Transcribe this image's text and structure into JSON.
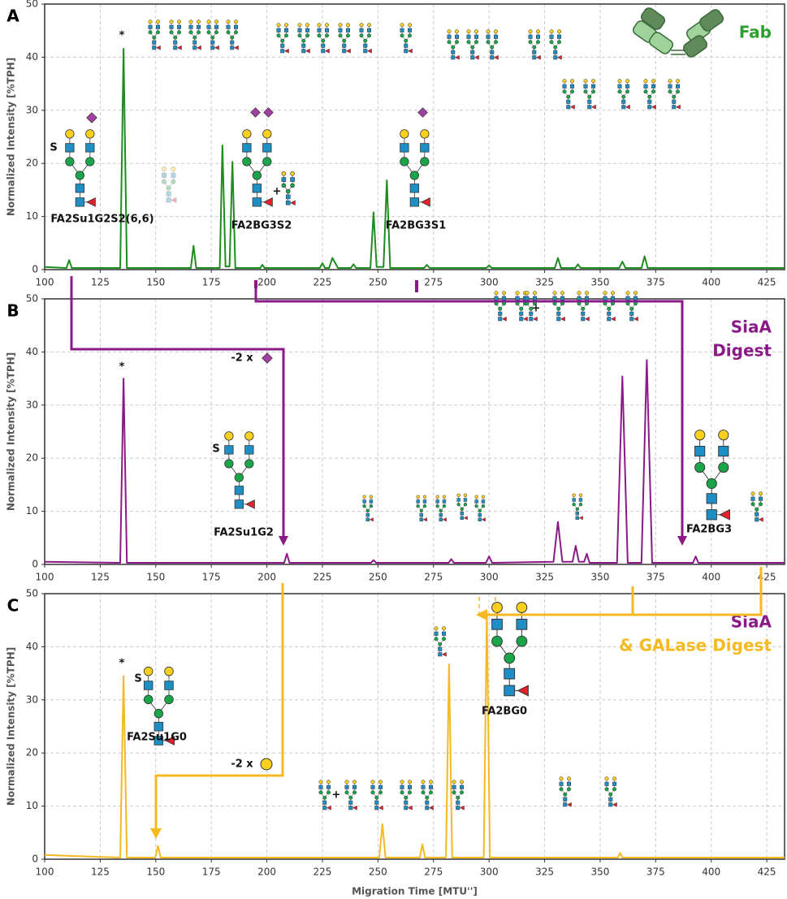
{
  "chart_data": [
    {
      "type": "line",
      "panel": "A",
      "title": [
        {
          "text": "Fab",
          "color": "#2ca02c"
        }
      ],
      "ylabel": "Normalized Intensity [%TPH]",
      "color": "#1e8c1e",
      "xlim": [
        100,
        433
      ],
      "xticks": [
        100,
        125,
        150,
        175,
        200,
        225,
        250,
        275,
        300,
        325,
        350,
        375,
        400,
        425
      ],
      "ylim": [
        0,
        50
      ],
      "yticks": [
        0,
        10,
        20,
        30,
        40,
        50
      ],
      "grid": true,
      "x": [
        100,
        109.8,
        111,
        112.2,
        134,
        135.5,
        137,
        165.8,
        167,
        168.2,
        178.8,
        180,
        181.4,
        183.2,
        184.5,
        185.8,
        197,
        198,
        199,
        223.8,
        225,
        226.2,
        228,
        229.5,
        232,
        237.8,
        239,
        240.2,
        246.6,
        248,
        249.4,
        252.5,
        254,
        255.5,
        270.8,
        272,
        273.2,
        298.8,
        300,
        301.2,
        329.6,
        331,
        332.4,
        338.8,
        340,
        341.2,
        358.6,
        360,
        361.4,
        368.6,
        370,
        371.4,
        433
      ],
      "values": [
        0.5,
        0.3,
        1.8,
        0.3,
        0.3,
        41.6,
        0.3,
        0.3,
        4.5,
        0.3,
        0.3,
        23.4,
        0.6,
        0.6,
        20.3,
        0.3,
        0.3,
        0.9,
        0.3,
        0.3,
        1.2,
        0.3,
        0.3,
        2.2,
        0.3,
        0.3,
        1.0,
        0.3,
        0.3,
        10.8,
        0.5,
        0.5,
        16.8,
        0.3,
        0.3,
        0.9,
        0.3,
        0.3,
        0.8,
        0.3,
        0.3,
        2.2,
        0.3,
        0.3,
        1.0,
        0.3,
        0.3,
        1.5,
        0.3,
        0.3,
        2.5,
        0.3,
        0.3
      ],
      "annotations": [
        "*",
        "FA2Su1G2S2(6,6)",
        "FA2BG3S2",
        "FA2BG3S1",
        "S",
        "+"
      ]
    },
    {
      "type": "line",
      "panel": "B",
      "title": [
        {
          "text": "SiaA",
          "color": "#8b1a89"
        },
        {
          "text": "Digest",
          "color": "#8b1a89"
        }
      ],
      "ylabel": "Normalized Intensity [%TPH]",
      "color": "#8b1a89",
      "xlim": [
        100,
        433
      ],
      "xticks": [
        100,
        125,
        150,
        175,
        200,
        225,
        250,
        275,
        300,
        325,
        350,
        375,
        400,
        425
      ],
      "ylim": [
        0,
        50
      ],
      "yticks": [
        0,
        10,
        20,
        30,
        40,
        50
      ],
      "grid": true,
      "x": [
        100,
        134,
        135.5,
        137,
        207.8,
        209,
        210.2,
        246.8,
        248,
        249.2,
        281.8,
        283,
        284.2,
        298.6,
        300,
        301.4,
        329,
        331,
        333,
        337.6,
        339,
        340.4,
        342.8,
        344,
        345.2,
        357.6,
        360,
        362.4,
        368.6,
        371,
        373.4,
        391.8,
        393,
        394.2,
        433
      ],
      "values": [
        0.5,
        0.3,
        35.0,
        0.3,
        0.3,
        2.0,
        0.3,
        0.3,
        0.8,
        0.3,
        0.3,
        1.0,
        0.3,
        0.3,
        1.5,
        0.3,
        0.5,
        8.0,
        0.5,
        0.5,
        3.5,
        0.5,
        0.5,
        2.0,
        0.3,
        0.3,
        35.4,
        0.3,
        0.3,
        38.5,
        0.3,
        0.3,
        1.5,
        0.3,
        0.3
      ],
      "annotations": [
        "*",
        "-2 x",
        "FA2Su1G2",
        "FA2BG3",
        "S",
        "+"
      ]
    },
    {
      "type": "line",
      "panel": "C",
      "title": [
        {
          "text": "SiaA",
          "color": "#8b1a89"
        },
        {
          "text": "& GALase Digest",
          "color": "#f5b921"
        }
      ],
      "ylabel": "Normalized Intensity [%TPH]",
      "xlabel": "Migration Time [MTU'']",
      "color": "#f5b921",
      "xlim": [
        100,
        433
      ],
      "xticks": [
        100,
        125,
        150,
        175,
        200,
        225,
        250,
        275,
        300,
        325,
        350,
        375,
        400,
        425
      ],
      "ylim": [
        0,
        50
      ],
      "yticks": [
        0,
        10,
        20,
        30,
        40,
        50
      ],
      "grid": true,
      "x": [
        100,
        134,
        135.5,
        137,
        149.8,
        151,
        152.2,
        250.6,
        252,
        253.4,
        268.8,
        270,
        271.2,
        280.6,
        282,
        283.4,
        297.6,
        299,
        300.4,
        358,
        359,
        360,
        433
      ],
      "values": [
        0.8,
        0.3,
        34.5,
        0.3,
        0.3,
        2.5,
        0.3,
        0.3,
        6.6,
        0.3,
        0.3,
        2.8,
        0.3,
        0.3,
        36.7,
        0.3,
        0.3,
        46.5,
        0.3,
        0.3,
        1.2,
        0.3,
        0.3
      ],
      "annotations": [
        "*",
        "-2 x",
        "FA2Su1G0",
        "FA2BG0",
        "S",
        "+"
      ]
    }
  ]
}
